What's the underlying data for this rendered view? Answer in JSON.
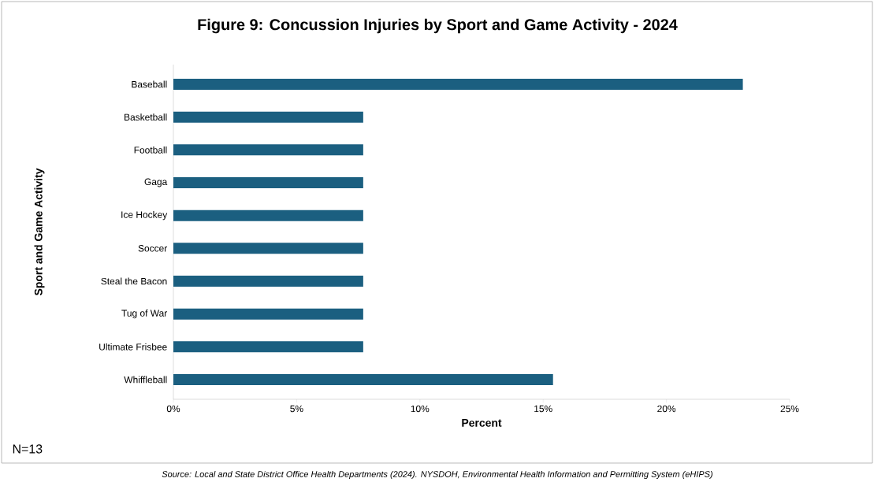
{
  "chart_data": {
    "type": "bar",
    "orientation": "horizontal",
    "title": "Figure 9: Concussion Injuries by Sport and Game Activity - 2024",
    "xlabel": "Percent",
    "ylabel": "Sport and Game Activity",
    "categories": [
      "Baseball",
      "Basketball",
      "Football",
      "Gaga",
      "Ice Hockey",
      "Soccer",
      "Steal the Bacon",
      "Tug of War",
      "Ultimate Frisbee",
      "Whiffleball"
    ],
    "values": [
      23.1,
      7.7,
      7.7,
      7.7,
      7.7,
      7.7,
      7.7,
      7.7,
      7.7,
      15.4
    ],
    "color": "#1b5f80",
    "xlim": [
      0,
      25
    ],
    "xticks": [
      {
        "value": 0,
        "label": "0%"
      },
      {
        "value": 5,
        "label": "5%"
      },
      {
        "value": 10,
        "label": "10%"
      },
      {
        "value": 15,
        "label": "15%"
      },
      {
        "value": 20,
        "label": "20%"
      },
      {
        "value": 25,
        "label": "25%"
      }
    ],
    "annotations": [
      "N=13",
      "Source: Local and State District Office Health Departments (2024). NYSDOH, Environmental Health Information and Permitting System (eHIPS)"
    ]
  }
}
